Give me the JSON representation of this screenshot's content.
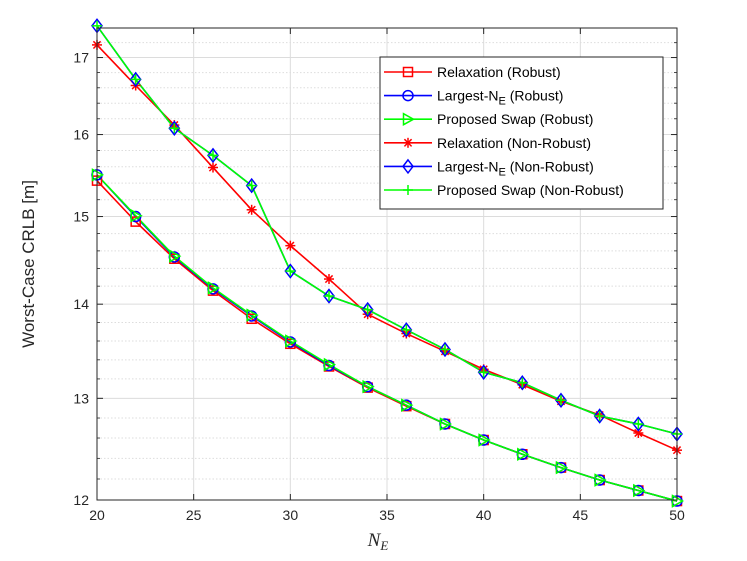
{
  "chart_data": {
    "type": "line",
    "title": "",
    "xlabel": "N",
    "xlabel_subscript": "E",
    "ylabel": "Worst-Case CRLB [m]",
    "xlim": [
      20,
      50
    ],
    "ylim": [
      12,
      17.4
    ],
    "yscale": "log",
    "xticks": [
      20,
      25,
      30,
      35,
      40,
      45,
      50
    ],
    "yticks": [
      12,
      13,
      14,
      15,
      16,
      17
    ],
    "x": [
      20,
      22,
      24,
      26,
      28,
      30,
      32,
      34,
      36,
      38,
      40,
      42,
      44,
      46,
      48,
      50
    ],
    "grid": true,
    "legend_position": "top-right",
    "series": [
      {
        "name": "Relaxation (Robust)",
        "color": "#ff0000",
        "marker": "square",
        "values": [
          15.43,
          14.94,
          14.51,
          14.15,
          13.84,
          13.57,
          13.33,
          13.11,
          12.92,
          12.74,
          12.58,
          12.44,
          12.31,
          12.19,
          12.09,
          11.99
        ]
      },
      {
        "name": "Largest-N",
        "name_sub": "E",
        "name_suffix": " (Robust)",
        "color": "#0000ff",
        "marker": "circle",
        "values": [
          15.5,
          15.0,
          14.53,
          14.17,
          13.87,
          13.59,
          13.34,
          13.12,
          12.93,
          12.74,
          12.58,
          12.44,
          12.31,
          12.19,
          12.09,
          11.99
        ]
      },
      {
        "name": "Proposed Swap (Robust)",
        "color": "#00ff00",
        "marker": "triangle-right",
        "values": [
          15.5,
          15.01,
          14.54,
          14.18,
          13.88,
          13.6,
          13.35,
          13.12,
          12.93,
          12.74,
          12.58,
          12.44,
          12.31,
          12.19,
          12.09,
          11.99
        ]
      },
      {
        "name": "Relaxation (Non-Robust)",
        "color": "#ff0000",
        "marker": "asterisk",
        "values": [
          17.17,
          16.63,
          16.12,
          15.59,
          15.08,
          14.66,
          14.28,
          13.89,
          13.68,
          13.49,
          13.3,
          13.14,
          12.97,
          12.83,
          12.65,
          12.48
        ]
      },
      {
        "name": "Largest-N",
        "name_sub": "E",
        "name_suffix": " (Non-Robust)",
        "color": "#0000ff",
        "marker": "diamond",
        "values": [
          17.43,
          16.71,
          16.08,
          15.74,
          15.37,
          14.37,
          14.09,
          13.94,
          13.72,
          13.51,
          13.27,
          13.16,
          12.98,
          12.82,
          12.74,
          12.64
        ]
      },
      {
        "name": "Proposed Swap (Non-Robust)",
        "color": "#00ff00",
        "marker": "plus",
        "values": [
          17.43,
          16.71,
          16.08,
          15.74,
          15.37,
          14.37,
          14.09,
          13.94,
          13.72,
          13.51,
          13.27,
          13.16,
          12.98,
          12.82,
          12.74,
          12.64
        ]
      }
    ]
  }
}
